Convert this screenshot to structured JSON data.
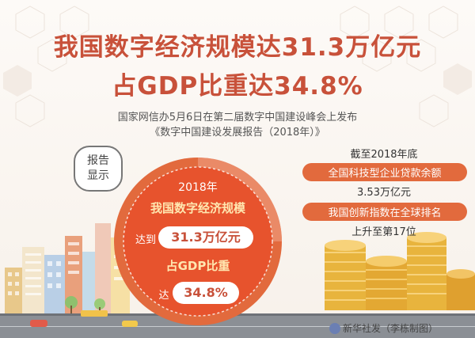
{
  "title": {
    "line1": "我国数字经济规模达31.3万亿元",
    "line2": "占GDP比重达34.8%"
  },
  "subtitle": {
    "line1": "国家网信办5月6日在第二届数字中国建设峰会上发布",
    "line2": "《数字中国建设发展报告（2018年）》"
  },
  "badge": {
    "line1": "报告",
    "line2": "显示"
  },
  "circle": {
    "year": "2018年",
    "line1": "我国数字经济规模",
    "reach_prefix": "达到",
    "value1": "31.3万亿元",
    "line2": "占GDP比重",
    "value2_prefix": "达",
    "value2": "34.8%"
  },
  "right": {
    "deadline": "截至2018年底",
    "label1": "全国科技型企业贷款余额",
    "value1": "3.53万亿元",
    "label2": "我国创新指数在全球排名",
    "value2": "上升至第17位"
  },
  "footer": {
    "credit": "新华社发（李栋制图）"
  },
  "colors": {
    "accent": "#c8513a",
    "circle": "#e7532d",
    "pill": "#e26a3d",
    "gold": "#e8b43d"
  }
}
